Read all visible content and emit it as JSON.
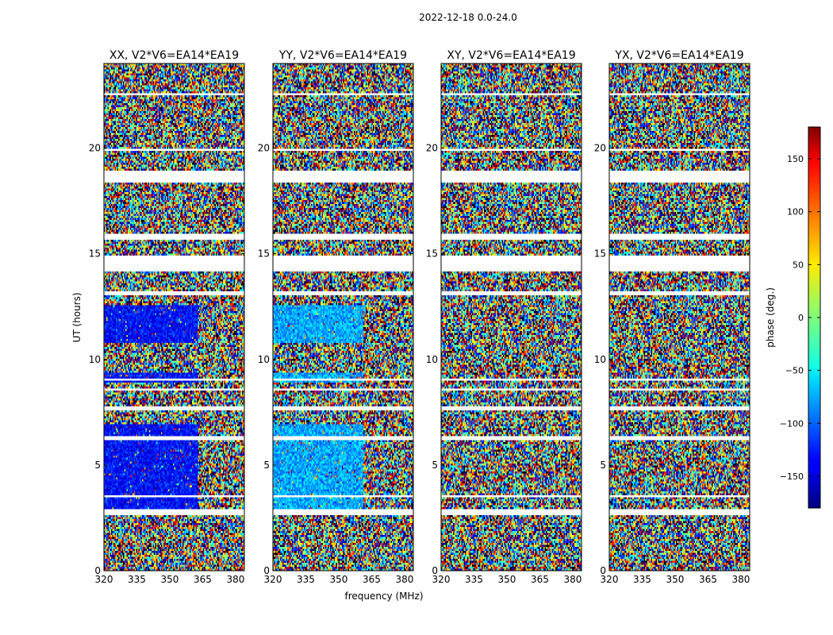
{
  "chart_data": {
    "type": "heatmap",
    "suptitle": "2022-12-18 0.0-24.0",
    "xlabel": "frequency (MHz)",
    "ylabel": "UT (hours)",
    "xlim": [
      320,
      384
    ],
    "ylim": [
      0,
      24
    ],
    "xticks": [
      320,
      335,
      350,
      365,
      380
    ],
    "yticks": [
      0,
      5,
      10,
      15,
      20
    ],
    "colorbar": {
      "label": "phase (deg.)",
      "range": [
        -180,
        180
      ],
      "ticks": [
        150,
        100,
        50,
        0,
        -50,
        -100,
        -150
      ],
      "tick_labels": [
        "150",
        "100",
        "50",
        "0",
        "−50",
        "−100",
        "−150"
      ],
      "colormap": "jet"
    },
    "flagged_ut_hours": [
      [
        2.6,
        2.9
      ],
      [
        14.2,
        14.9
      ],
      [
        15.7,
        15.95
      ],
      [
        18.4,
        18.9
      ],
      [
        19.9,
        20.0
      ],
      [
        7.6,
        7.8
      ],
      [
        6.2,
        6.35
      ],
      [
        13.0,
        13.2
      ],
      [
        3.5,
        3.6
      ],
      [
        8.5,
        8.6
      ],
      [
        22.5,
        22.6
      ],
      [
        9.0,
        9.1
      ]
    ],
    "panels": [
      {
        "title": "XX, V2*V6=EA14*EA19",
        "ordered_phase_deg": -130,
        "ordered_freq_end_mhz": 363,
        "ordered_ut_ranges": [
          [
            2.9,
            6.9
          ],
          [
            8.9,
            9.4
          ],
          [
            10.8,
            12.6
          ]
        ]
      },
      {
        "title": "YY, V2*V6=EA14*EA19",
        "ordered_phase_deg": -75,
        "ordered_freq_end_mhz": 361,
        "ordered_ut_ranges": [
          [
            2.9,
            6.9
          ],
          [
            8.9,
            9.4
          ],
          [
            10.8,
            12.6
          ]
        ]
      },
      {
        "title": "XY, V2*V6=EA14*EA19",
        "ordered_phase_deg": null,
        "ordered_freq_end_mhz": null,
        "ordered_ut_ranges": []
      },
      {
        "title": "YX, V2*V6=EA14*EA19",
        "ordered_phase_deg": null,
        "ordered_freq_end_mhz": null,
        "ordered_ut_ranges": []
      }
    ]
  }
}
